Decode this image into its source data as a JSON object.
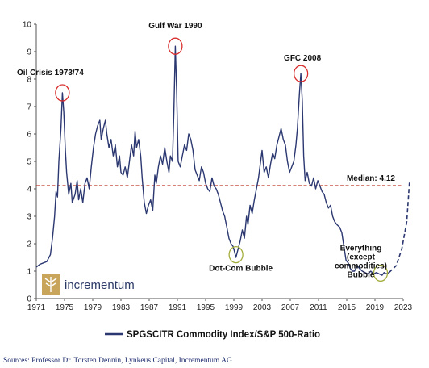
{
  "chart_data": {
    "type": "line",
    "xlim": [
      1971,
      2023
    ],
    "ylim": [
      0,
      10
    ],
    "xticks": [
      "1971",
      "1975",
      "1979",
      "1983",
      "1987",
      "1991",
      "1995",
      "1999",
      "2003",
      "2007",
      "2011",
      "2015",
      "2019",
      "2023"
    ],
    "yticks": [
      "0",
      "1",
      "2",
      "3",
      "4",
      "5",
      "6",
      "7",
      "8",
      "9",
      "10"
    ],
    "grid": false,
    "legend": "bottom-center",
    "series": [
      {
        "name": "SPGSCITR Commodity Index/S&P 500-Ratio",
        "color": "#2b3770",
        "points": [
          [
            1971.0,
            1.15
          ],
          [
            1971.5,
            1.25
          ],
          [
            1972.0,
            1.3
          ],
          [
            1972.5,
            1.35
          ],
          [
            1973.0,
            1.6
          ],
          [
            1973.3,
            2.2
          ],
          [
            1973.6,
            3.0
          ],
          [
            1973.8,
            3.9
          ],
          [
            1974.0,
            3.7
          ],
          [
            1974.2,
            5.0
          ],
          [
            1974.5,
            6.2
          ],
          [
            1974.7,
            7.5
          ],
          [
            1974.9,
            6.8
          ],
          [
            1975.1,
            5.5
          ],
          [
            1975.3,
            4.6
          ],
          [
            1975.6,
            3.8
          ],
          [
            1975.9,
            4.2
          ],
          [
            1976.1,
            3.5
          ],
          [
            1976.5,
            3.8
          ],
          [
            1976.8,
            4.3
          ],
          [
            1977.0,
            3.6
          ],
          [
            1977.3,
            4.0
          ],
          [
            1977.6,
            3.5
          ],
          [
            1977.9,
            4.2
          ],
          [
            1978.2,
            4.4
          ],
          [
            1978.5,
            4.0
          ],
          [
            1978.8,
            4.8
          ],
          [
            1979.1,
            5.5
          ],
          [
            1979.4,
            6.0
          ],
          [
            1979.7,
            6.3
          ],
          [
            1980.0,
            6.5
          ],
          [
            1980.2,
            5.8
          ],
          [
            1980.5,
            6.2
          ],
          [
            1980.8,
            6.5
          ],
          [
            1981.0,
            6.0
          ],
          [
            1981.3,
            5.5
          ],
          [
            1981.6,
            5.8
          ],
          [
            1981.9,
            5.2
          ],
          [
            1982.2,
            5.6
          ],
          [
            1982.5,
            4.8
          ],
          [
            1982.8,
            5.2
          ],
          [
            1983.0,
            4.6
          ],
          [
            1983.3,
            4.5
          ],
          [
            1983.6,
            4.8
          ],
          [
            1983.9,
            4.4
          ],
          [
            1984.2,
            5.0
          ],
          [
            1984.5,
            5.6
          ],
          [
            1984.8,
            5.2
          ],
          [
            1985.0,
            6.1
          ],
          [
            1985.2,
            5.5
          ],
          [
            1985.5,
            5.8
          ],
          [
            1985.8,
            5.2
          ],
          [
            1986.0,
            4.4
          ],
          [
            1986.3,
            3.5
          ],
          [
            1986.6,
            3.1
          ],
          [
            1986.9,
            3.4
          ],
          [
            1987.2,
            3.6
          ],
          [
            1987.5,
            3.2
          ],
          [
            1987.8,
            4.5
          ],
          [
            1988.0,
            4.2
          ],
          [
            1988.3,
            4.8
          ],
          [
            1988.6,
            5.2
          ],
          [
            1988.9,
            4.9
          ],
          [
            1989.2,
            5.5
          ],
          [
            1989.5,
            5.0
          ],
          [
            1989.8,
            4.6
          ],
          [
            1990.0,
            5.2
          ],
          [
            1990.3,
            5.0
          ],
          [
            1990.5,
            6.8
          ],
          [
            1990.7,
            9.2
          ],
          [
            1990.9,
            7.5
          ],
          [
            1991.1,
            5.0
          ],
          [
            1991.4,
            4.8
          ],
          [
            1991.7,
            5.2
          ],
          [
            1992.0,
            5.6
          ],
          [
            1992.3,
            5.4
          ],
          [
            1992.6,
            6.0
          ],
          [
            1992.9,
            5.8
          ],
          [
            1993.2,
            5.4
          ],
          [
            1993.5,
            4.7
          ],
          [
            1993.8,
            4.5
          ],
          [
            1994.1,
            4.3
          ],
          [
            1994.4,
            4.8
          ],
          [
            1994.7,
            4.6
          ],
          [
            1995.0,
            4.2
          ],
          [
            1995.3,
            4.0
          ],
          [
            1995.6,
            3.9
          ],
          [
            1995.9,
            4.4
          ],
          [
            1996.2,
            4.1
          ],
          [
            1996.5,
            4.0
          ],
          [
            1996.8,
            3.8
          ],
          [
            1997.1,
            3.5
          ],
          [
            1997.4,
            3.2
          ],
          [
            1997.7,
            3.0
          ],
          [
            1998.0,
            2.6
          ],
          [
            1998.3,
            2.2
          ],
          [
            1998.6,
            2.0
          ],
          [
            1998.9,
            1.9
          ],
          [
            1999.1,
            1.7
          ],
          [
            1999.3,
            1.5
          ],
          [
            1999.6,
            1.8
          ],
          [
            1999.9,
            2.1
          ],
          [
            2000.2,
            2.5
          ],
          [
            2000.5,
            2.2
          ],
          [
            2000.8,
            3.0
          ],
          [
            2001.0,
            2.7
          ],
          [
            2001.3,
            3.4
          ],
          [
            2001.6,
            3.1
          ],
          [
            2001.9,
            3.6
          ],
          [
            2002.2,
            4.0
          ],
          [
            2002.5,
            4.4
          ],
          [
            2002.8,
            5.0
          ],
          [
            2003.0,
            5.4
          ],
          [
            2003.3,
            4.6
          ],
          [
            2003.6,
            4.8
          ],
          [
            2003.9,
            4.4
          ],
          [
            2004.2,
            4.9
          ],
          [
            2004.5,
            5.3
          ],
          [
            2004.8,
            5.1
          ],
          [
            2005.1,
            5.6
          ],
          [
            2005.4,
            5.9
          ],
          [
            2005.7,
            6.2
          ],
          [
            2006.0,
            5.8
          ],
          [
            2006.3,
            5.6
          ],
          [
            2006.6,
            5.0
          ],
          [
            2006.9,
            4.6
          ],
          [
            2007.2,
            4.8
          ],
          [
            2007.5,
            5.0
          ],
          [
            2007.8,
            5.6
          ],
          [
            2008.0,
            6.2
          ],
          [
            2008.3,
            7.5
          ],
          [
            2008.5,
            8.2
          ],
          [
            2008.7,
            7.2
          ],
          [
            2008.9,
            5.2
          ],
          [
            2009.1,
            4.3
          ],
          [
            2009.4,
            4.6
          ],
          [
            2009.7,
            4.2
          ],
          [
            2010.0,
            4.1
          ],
          [
            2010.3,
            4.4
          ],
          [
            2010.6,
            4.0
          ],
          [
            2010.9,
            4.3
          ],
          [
            2011.2,
            4.1
          ],
          [
            2011.5,
            3.9
          ],
          [
            2011.8,
            3.8
          ],
          [
            2012.1,
            3.5
          ],
          [
            2012.4,
            3.3
          ],
          [
            2012.7,
            3.4
          ],
          [
            2013.0,
            3.0
          ],
          [
            2013.3,
            2.8
          ],
          [
            2013.6,
            2.7
          ],
          [
            2014.0,
            2.6
          ],
          [
            2014.3,
            2.4
          ],
          [
            2014.6,
            1.9
          ],
          [
            2014.9,
            1.4
          ],
          [
            2015.2,
            1.3
          ],
          [
            2015.5,
            1.1
          ],
          [
            2015.8,
            1.0
          ],
          [
            2016.1,
            1.0
          ],
          [
            2016.5,
            1.2
          ],
          [
            2016.8,
            1.1
          ],
          [
            2017.2,
            1.0
          ],
          [
            2017.6,
            0.95
          ],
          [
            2018.0,
            0.9
          ],
          [
            2018.4,
            1.0
          ],
          [
            2018.8,
            0.9
          ],
          [
            2019.2,
            0.95
          ],
          [
            2019.6,
            0.9
          ],
          [
            2020.0,
            0.85
          ],
          [
            2020.3,
            0.95
          ],
          [
            2020.6,
            0.9
          ],
          [
            2021.0,
            0.95
          ]
        ]
      }
    ],
    "projection": [
      [
        2021.0,
        0.95
      ],
      [
        2022.0,
        1.2
      ],
      [
        2022.8,
        1.8
      ],
      [
        2023.5,
        2.8
      ],
      [
        2023.9,
        4.3
      ]
    ],
    "median": {
      "value": 4.12,
      "label": "Median: 4.12",
      "color": "#c0392b"
    },
    "annotations": [
      {
        "text": "Oil Crisis 1973/74",
        "x": 1974.7,
        "y": 7.5
      },
      {
        "text": "Gulf War 1990",
        "x": 1990.7,
        "y": 9.2
      },
      {
        "text": "GFC 2008",
        "x": 2008.5,
        "y": 8.2
      },
      {
        "text": "Dot-Com Bubble",
        "x": 1999.3,
        "y": 1.6
      },
      {
        "text": "Everything",
        "x": 2019.8,
        "y": 0.93
      },
      {
        "text": "(except",
        "x": 2019.8,
        "y": 0.93
      },
      {
        "text": "commodities)",
        "x": 2019.8,
        "y": 0.93
      },
      {
        "text": "Bubble",
        "x": 2019.8,
        "y": 0.93
      }
    ]
  },
  "brand": {
    "name": "incrementum"
  },
  "sources": "Sources: Professor Dr. Torsten Dennin, Lynkeus Capital, Incrementum AG"
}
